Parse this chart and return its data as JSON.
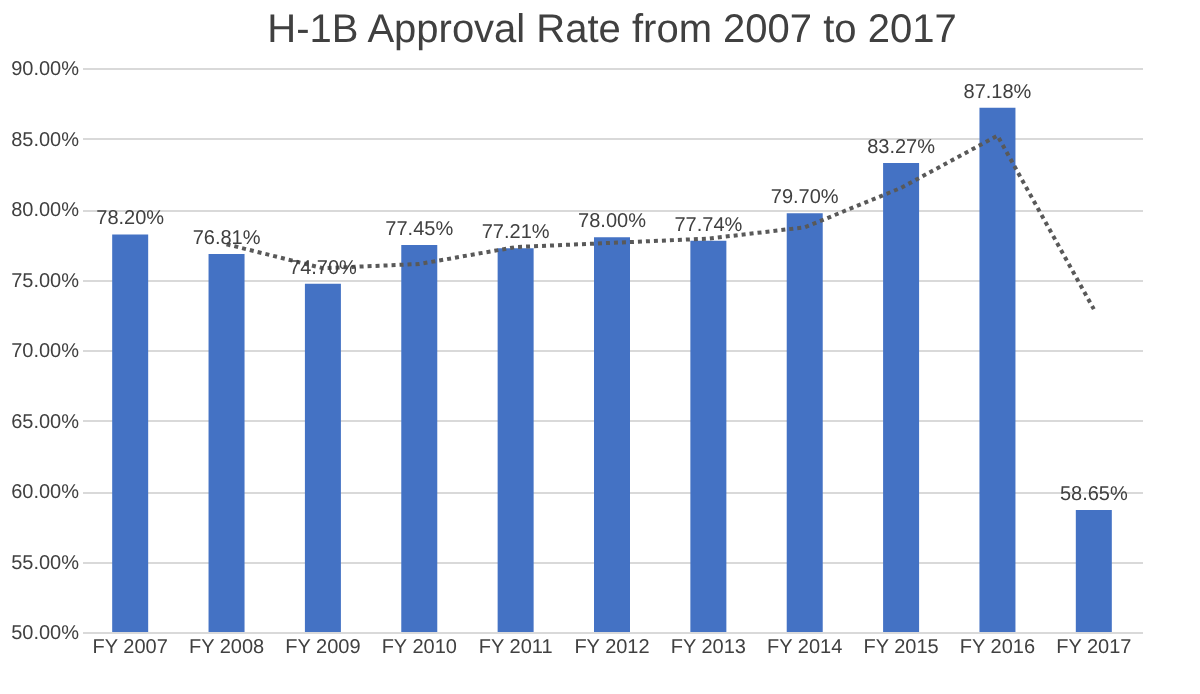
{
  "chart_data": {
    "type": "bar",
    "title": "H-1B Approval Rate from 2007 to 2017",
    "categories": [
      "FY 2007",
      "FY 2008",
      "FY 2009",
      "FY 2010",
      "FY 2011",
      "FY 2012",
      "FY 2013",
      "FY 2014",
      "FY 2015",
      "FY 2016",
      "FY 2017"
    ],
    "series": [
      {
        "color": "#4472c4",
        "values": [
          78.2,
          76.81,
          74.7,
          77.45,
          77.21,
          78.0,
          77.74,
          79.7,
          83.27,
          87.18,
          58.65
        ],
        "value_labels": [
          "78.20%",
          "76.81%",
          "74.70%",
          "77.45%",
          "77.21%",
          "78.00%",
          "77.74%",
          "79.70%",
          "83.27%",
          "87.18%",
          "58.65%"
        ]
      },
      {
        "type": "line",
        "color": "#595959",
        "line_style": "dotted",
        "values": [
          null,
          77.5,
          75.8,
          76.1,
          77.3,
          77.6,
          77.9,
          78.7,
          81.5,
          85.2,
          72.9
        ]
      }
    ],
    "ylim": [
      50,
      90
    ],
    "yticks": [
      {
        "value": 50,
        "label": "50.00%"
      },
      {
        "value": 55,
        "label": "55.00%"
      },
      {
        "value": 60,
        "label": "60.00%"
      },
      {
        "value": 65,
        "label": "65.00%"
      },
      {
        "value": 70,
        "label": "70.00%"
      },
      {
        "value": 75,
        "label": "75.00%"
      },
      {
        "value": 80,
        "label": "80.00%"
      },
      {
        "value": 85,
        "label": "85.00%"
      },
      {
        "value": 90,
        "label": "90.00%"
      }
    ],
    "grid": "y"
  }
}
